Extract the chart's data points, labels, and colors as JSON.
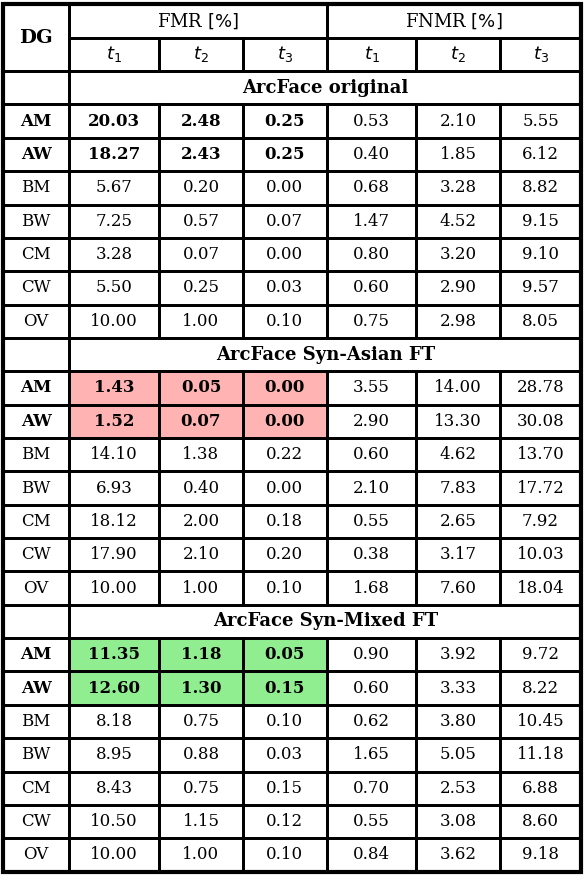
{
  "sections": [
    {
      "title": "ArcFace original",
      "rows": [
        {
          "dg": "AM",
          "vals": [
            "20.03",
            "2.48",
            "0.25",
            "0.53",
            "2.10",
            "5.55"
          ],
          "bold": true,
          "fmr_color": null
        },
        {
          "dg": "AW",
          "vals": [
            "18.27",
            "2.43",
            "0.25",
            "0.40",
            "1.85",
            "6.12"
          ],
          "bold": true,
          "fmr_color": null
        },
        {
          "dg": "BM",
          "vals": [
            "5.67",
            "0.20",
            "0.00",
            "0.68",
            "3.28",
            "8.82"
          ],
          "bold": false,
          "fmr_color": null
        },
        {
          "dg": "BW",
          "vals": [
            "7.25",
            "0.57",
            "0.07",
            "1.47",
            "4.52",
            "9.15"
          ],
          "bold": false,
          "fmr_color": null
        },
        {
          "dg": "CM",
          "vals": [
            "3.28",
            "0.07",
            "0.00",
            "0.80",
            "3.20",
            "9.10"
          ],
          "bold": false,
          "fmr_color": null
        },
        {
          "dg": "CW",
          "vals": [
            "5.50",
            "0.25",
            "0.03",
            "0.60",
            "2.90",
            "9.57"
          ],
          "bold": false,
          "fmr_color": null
        },
        {
          "dg": "OV",
          "vals": [
            "10.00",
            "1.00",
            "0.10",
            "0.75",
            "2.98",
            "8.05"
          ],
          "bold": false,
          "fmr_color": null
        }
      ]
    },
    {
      "title": "ArcFace Syn-Asian FT",
      "rows": [
        {
          "dg": "AM",
          "vals": [
            "1.43",
            "0.05",
            "0.00",
            "3.55",
            "14.00",
            "28.78"
          ],
          "bold": true,
          "fmr_color": "#ffb3b3"
        },
        {
          "dg": "AW",
          "vals": [
            "1.52",
            "0.07",
            "0.00",
            "2.90",
            "13.30",
            "30.08"
          ],
          "bold": true,
          "fmr_color": "#ffb3b3"
        },
        {
          "dg": "BM",
          "vals": [
            "14.10",
            "1.38",
            "0.22",
            "0.60",
            "4.62",
            "13.70"
          ],
          "bold": false,
          "fmr_color": null
        },
        {
          "dg": "BW",
          "vals": [
            "6.93",
            "0.40",
            "0.00",
            "2.10",
            "7.83",
            "17.72"
          ],
          "bold": false,
          "fmr_color": null
        },
        {
          "dg": "CM",
          "vals": [
            "18.12",
            "2.00",
            "0.18",
            "0.55",
            "2.65",
            "7.92"
          ],
          "bold": false,
          "fmr_color": null
        },
        {
          "dg": "CW",
          "vals": [
            "17.90",
            "2.10",
            "0.20",
            "0.38",
            "3.17",
            "10.03"
          ],
          "bold": false,
          "fmr_color": null
        },
        {
          "dg": "OV",
          "vals": [
            "10.00",
            "1.00",
            "0.10",
            "1.68",
            "7.60",
            "18.04"
          ],
          "bold": false,
          "fmr_color": null
        }
      ]
    },
    {
      "title": "ArcFace Syn-Mixed FT",
      "rows": [
        {
          "dg": "AM",
          "vals": [
            "11.35",
            "1.18",
            "0.05",
            "0.90",
            "3.92",
            "9.72"
          ],
          "bold": true,
          "fmr_color": "#90ee90"
        },
        {
          "dg": "AW",
          "vals": [
            "12.60",
            "1.30",
            "0.15",
            "0.60",
            "3.33",
            "8.22"
          ],
          "bold": true,
          "fmr_color": "#90ee90"
        },
        {
          "dg": "BM",
          "vals": [
            "8.18",
            "0.75",
            "0.10",
            "0.62",
            "3.80",
            "10.45"
          ],
          "bold": false,
          "fmr_color": null
        },
        {
          "dg": "BW",
          "vals": [
            "8.95",
            "0.88",
            "0.03",
            "1.65",
            "5.05",
            "11.18"
          ],
          "bold": false,
          "fmr_color": null
        },
        {
          "dg": "CM",
          "vals": [
            "8.43",
            "0.75",
            "0.15",
            "0.70",
            "2.53",
            "6.88"
          ],
          "bold": false,
          "fmr_color": null
        },
        {
          "dg": "CW",
          "vals": [
            "10.50",
            "1.15",
            "0.12",
            "0.55",
            "3.08",
            "8.60"
          ],
          "bold": false,
          "fmr_color": null
        },
        {
          "dg": "OV",
          "vals": [
            "10.00",
            "1.00",
            "0.10",
            "0.84",
            "3.62",
            "9.18"
          ],
          "bold": false,
          "fmr_color": null
        }
      ]
    }
  ],
  "bg_color": "#ffffff",
  "pink_color": "#ffb3b3",
  "green_color": "#90ee90",
  "lw_thick": 2.0,
  "lw_thin": 0.8,
  "fontsize_header": 13,
  "fontsize_data": 12,
  "fontsize_dg": 14
}
